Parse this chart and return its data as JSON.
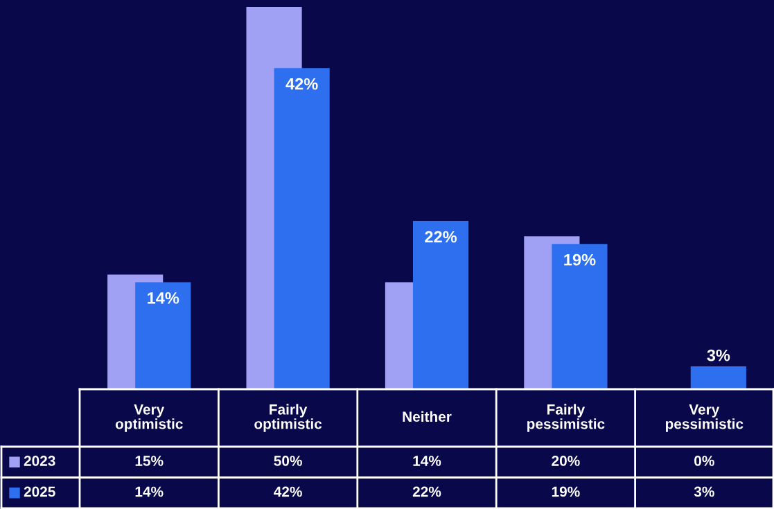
{
  "chart_data": {
    "type": "bar",
    "categories": [
      "Very optimistic",
      "Fairly optimistic",
      "Neither",
      "Fairly pessimistic",
      "Very pessimistic"
    ],
    "series": [
      {
        "name": "2023",
        "color": "#a0a0f5",
        "values": [
          15,
          50,
          14,
          20,
          0
        ],
        "value_labels": [
          "15%",
          "50%",
          "14%",
          "20%",
          "0%"
        ]
      },
      {
        "name": "2025",
        "color": "#2e6ff0",
        "values": [
          14,
          42,
          22,
          19,
          3
        ],
        "value_labels": [
          "14%",
          "42%",
          "22%",
          "19%",
          "3%"
        ]
      }
    ],
    "annotations": [
      {
        "text": "14%",
        "x": "Very optimistic",
        "y": 14
      },
      {
        "text": "42%",
        "x": "Fairly optimistic",
        "y": 42
      },
      {
        "text": "22%",
        "x": "Neither",
        "y": 22
      },
      {
        "text": "19%",
        "x": "Fairly pessimistic",
        "y": 19
      },
      {
        "text": "3%",
        "x": "Very pessimistic",
        "y": 3
      }
    ],
    "ylim": [
      0,
      50
    ],
    "legend": "bottom left"
  }
}
